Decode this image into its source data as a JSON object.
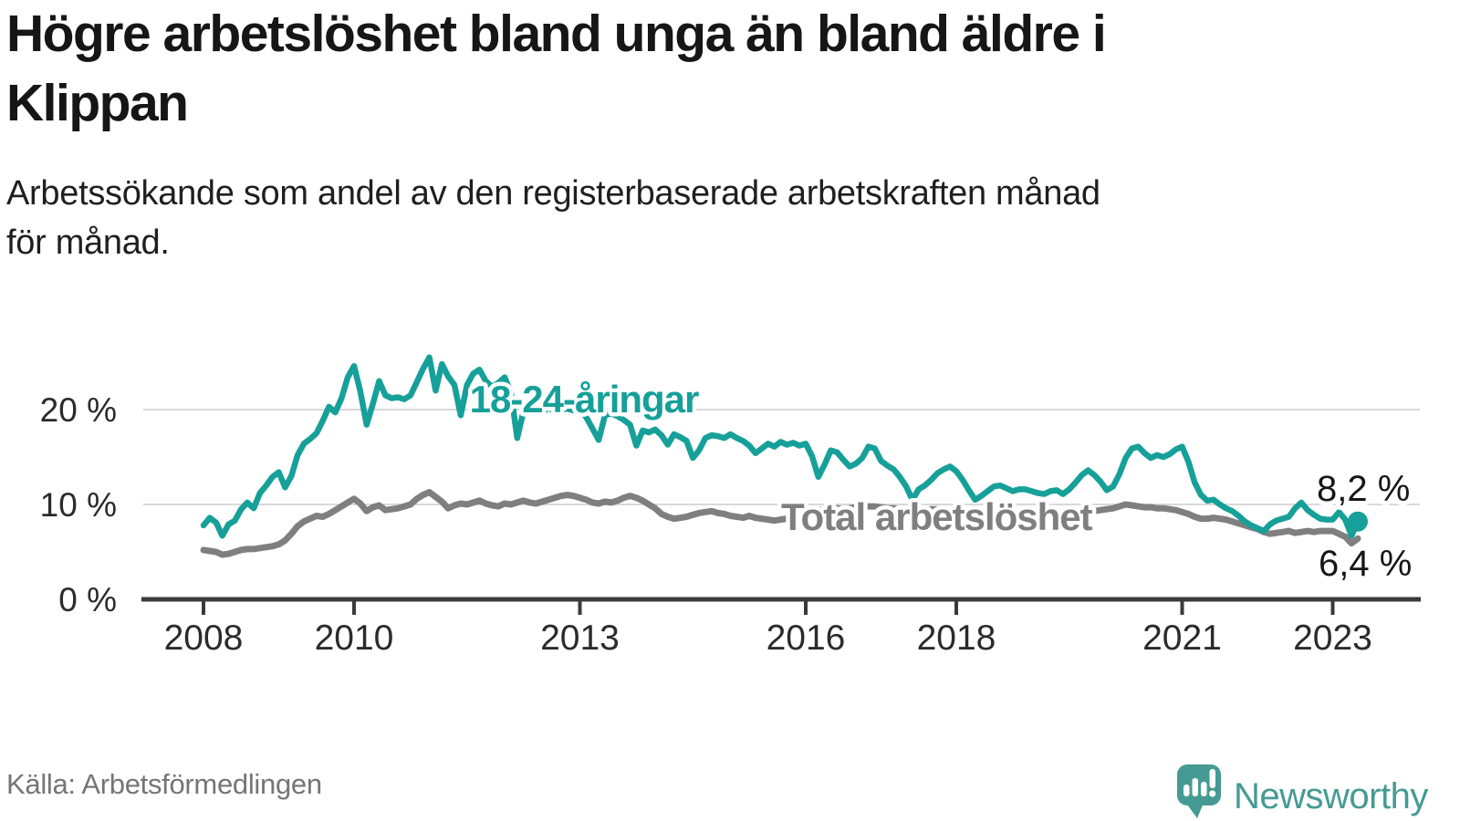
{
  "title_line1": "Högre arbetslöshet bland unga än bland äldre i",
  "title_line2": "Klippan",
  "subtitle_line1": "Arbetssökande som andel av den registerbaserade arbetskraften månad",
  "subtitle_line2": "för månad.",
  "source": "Källa: Arbetsförmedlingen",
  "brand": {
    "name": "Newsworthy",
    "logo_icon": "speech-bubble-bar-chart-exclamation-icon",
    "color": "#459b93"
  },
  "colors": {
    "young_line": "#16a099",
    "total_line": "#7f7f7f",
    "gridline": "#d9d9d9",
    "axis": "#3a3a3a",
    "dark_text": "#161616",
    "source_text": "#757575"
  },
  "chart_data": {
    "type": "line",
    "x_unit": "month",
    "x_start": "2008-01",
    "x_end": "2023-05",
    "ylim": [
      0,
      27.5
    ],
    "grid": "horizontal gridlines at 10 and 20, dark baseline at 0",
    "legend_position": "inline labels on lines",
    "y_ticks": [
      {
        "value": 20,
        "label": "20 %"
      },
      {
        "value": 10,
        "label": "10 %"
      },
      {
        "value": 0,
        "label": "0 %"
      }
    ],
    "x_ticks": [
      {
        "year": 2008,
        "label": "2008"
      },
      {
        "year": 2010,
        "label": "2010"
      },
      {
        "year": 2013,
        "label": "2013"
      },
      {
        "year": 2016,
        "label": "2016"
      },
      {
        "year": 2018,
        "label": "2018"
      },
      {
        "year": 2021,
        "label": "2021"
      },
      {
        "year": 2023,
        "label": "2023"
      }
    ],
    "series": [
      {
        "name": "18-24-åringar",
        "label": "18-24-åringar",
        "color": "#16a099",
        "end_label": "8,2 %",
        "end_value": 8.2,
        "end_marker": "dot",
        "values": [
          7.8,
          8.6,
          8.1,
          6.7,
          7.9,
          8.3,
          9.5,
          10.2,
          9.6,
          11.2,
          12.0,
          12.9,
          13.4,
          11.8,
          13.0,
          15.2,
          16.4,
          16.9,
          17.5,
          18.8,
          20.3,
          19.7,
          21.2,
          23.4,
          24.6,
          21.9,
          18.4,
          20.6,
          23.0,
          21.5,
          21.2,
          21.3,
          21.1,
          21.5,
          22.9,
          24.3,
          25.5,
          22.0,
          24.8,
          23.5,
          22.6,
          19.4,
          22.6,
          23.8,
          24.2,
          23.0,
          22.4,
          22.8,
          23.4,
          21.8,
          17.0,
          19.8,
          20.5,
          20.0,
          19.7,
          20.2,
          19.8,
          20.0,
          20.1,
          19.9,
          20.0,
          19.2,
          18.0,
          16.8,
          19.4,
          19.6,
          19.3,
          18.9,
          18.4,
          16.2,
          17.8,
          17.6,
          17.9,
          17.3,
          16.3,
          17.4,
          17.1,
          16.7,
          14.9,
          15.7,
          17.0,
          17.3,
          17.2,
          17.0,
          17.4,
          17.0,
          16.7,
          16.2,
          15.4,
          15.9,
          16.4,
          16.1,
          16.6,
          16.3,
          16.5,
          16.2,
          16.4,
          15.1,
          12.9,
          14.2,
          15.7,
          15.5,
          14.7,
          14.0,
          14.3,
          14.9,
          16.1,
          15.9,
          14.6,
          14.1,
          13.7,
          12.9,
          11.9,
          10.5,
          11.6,
          12.0,
          12.6,
          13.3,
          13.7,
          14.0,
          13.5,
          12.6,
          11.5,
          10.5,
          10.9,
          11.4,
          11.9,
          12.0,
          11.7,
          11.4,
          11.6,
          11.6,
          11.4,
          11.2,
          11.1,
          11.4,
          11.5,
          11.1,
          11.6,
          12.3,
          13.1,
          13.6,
          13.1,
          12.4,
          11.5,
          11.9,
          13.2,
          14.9,
          15.9,
          16.1,
          15.4,
          14.9,
          15.2,
          15.0,
          15.3,
          15.8,
          16.1,
          14.5,
          12.3,
          11.0,
          10.4,
          10.5,
          10.0,
          9.6,
          9.3,
          8.8,
          8.2,
          7.8,
          7.5,
          7.2,
          7.9,
          8.3,
          8.5,
          8.7,
          9.6,
          10.2,
          9.4,
          8.9,
          8.5,
          8.4,
          8.4,
          9.2,
          8.4,
          6.7,
          8.2
        ]
      },
      {
        "name": "Total arbetslöshet",
        "label": "Total arbetslöshet",
        "color": "#7f7f7f",
        "end_label": "6,4 %",
        "end_value": 6.4,
        "end_marker": "none",
        "values": [
          5.2,
          5.1,
          5.0,
          4.7,
          4.8,
          5.0,
          5.2,
          5.3,
          5.3,
          5.4,
          5.5,
          5.6,
          5.8,
          6.2,
          6.9,
          7.7,
          8.2,
          8.5,
          8.8,
          8.7,
          9.0,
          9.4,
          9.8,
          10.2,
          10.6,
          10.1,
          9.3,
          9.7,
          9.9,
          9.4,
          9.5,
          9.6,
          9.8,
          10.0,
          10.6,
          11.0,
          11.3,
          10.8,
          10.3,
          9.6,
          9.9,
          10.1,
          10.0,
          10.2,
          10.4,
          10.1,
          9.9,
          9.8,
          10.1,
          10.0,
          10.2,
          10.4,
          10.2,
          10.1,
          10.3,
          10.5,
          10.7,
          10.9,
          11.0,
          10.9,
          10.7,
          10.5,
          10.2,
          10.1,
          10.3,
          10.2,
          10.4,
          10.7,
          10.9,
          10.7,
          10.4,
          10.0,
          9.6,
          9.0,
          8.7,
          8.5,
          8.6,
          8.7,
          8.9,
          9.1,
          9.2,
          9.3,
          9.1,
          9.0,
          8.8,
          8.7,
          8.6,
          8.8,
          8.6,
          8.5,
          8.4,
          8.3,
          8.4,
          8.5,
          8.6,
          8.7,
          8.9,
          9.2,
          9.4,
          9.5,
          9.6,
          9.6,
          9.5,
          9.6,
          9.7,
          9.7,
          9.8,
          9.8,
          9.7,
          9.6,
          9.6,
          9.5,
          9.4,
          9.3,
          9.3,
          9.4,
          9.5,
          9.5,
          9.4,
          9.3,
          9.2,
          9.1,
          9.0,
          8.9,
          8.9,
          8.8,
          8.8,
          8.9,
          9.0,
          8.9,
          8.9,
          8.8,
          8.8,
          8.7,
          8.7,
          8.8,
          8.8,
          8.9,
          9.0,
          9.1,
          9.2,
          9.3,
          9.3,
          9.4,
          9.5,
          9.6,
          9.8,
          10.0,
          9.9,
          9.8,
          9.7,
          9.7,
          9.6,
          9.6,
          9.5,
          9.4,
          9.2,
          9.0,
          8.7,
          8.5,
          8.5,
          8.6,
          8.5,
          8.4,
          8.2,
          8.0,
          7.8,
          7.6,
          7.4,
          7.1,
          6.9,
          7.0,
          7.1,
          7.2,
          7.0,
          7.1,
          7.2,
          7.1,
          7.2,
          7.2,
          7.2,
          6.9,
          6.6,
          5.9,
          6.4
        ]
      }
    ]
  }
}
